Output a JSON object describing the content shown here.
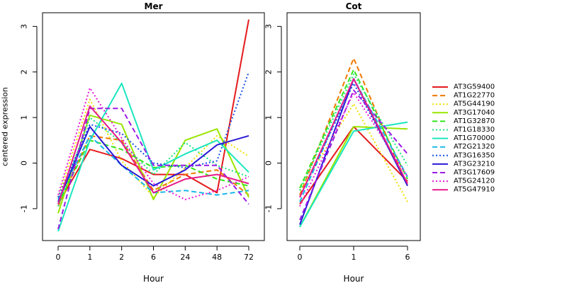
{
  "chart_data": [
    {
      "type": "line",
      "title": "Mer",
      "xlabel": "Hour",
      "ylabel": "centered expression",
      "categories": [
        "0",
        "1",
        "2",
        "6",
        "24",
        "48",
        "72"
      ],
      "yticks": [
        -1,
        0,
        1,
        2,
        3
      ],
      "ylim": [
        -1.7,
        3.3
      ],
      "series": [
        {
          "name": "AT3G59400",
          "values": [
            -0.9,
            0.3,
            0.1,
            -0.25,
            -0.25,
            -0.65,
            3.15
          ]
        },
        {
          "name": "AT1G22770",
          "values": [
            -0.95,
            0.6,
            0.5,
            -0.6,
            -0.25,
            -0.15,
            -0.7
          ]
        },
        {
          "name": "AT5G44190",
          "values": [
            -0.75,
            1.4,
            0.05,
            -0.75,
            -0.1,
            0.6,
            0.15
          ]
        },
        {
          "name": "AT3G17040",
          "values": [
            -1.1,
            1.05,
            0.85,
            -0.8,
            0.5,
            0.75,
            -0.75
          ]
        },
        {
          "name": "AT1G32870",
          "values": [
            -0.9,
            0.5,
            0.3,
            -0.1,
            -0.05,
            -0.35,
            -0.5
          ]
        },
        {
          "name": "AT1G18330",
          "values": [
            -0.95,
            1.0,
            0.45,
            -0.25,
            0.45,
            -0.05,
            -0.3
          ]
        },
        {
          "name": "AT1G70000",
          "values": [
            -1.5,
            0.5,
            1.75,
            -0.15,
            0.2,
            0.5,
            -0.2
          ]
        },
        {
          "name": "AT2G21320",
          "values": [
            -0.8,
            0.6,
            -0.05,
            -0.65,
            -0.6,
            -0.7,
            -0.6
          ]
        },
        {
          "name": "AT3G16350",
          "values": [
            -0.75,
            0.85,
            0.65,
            0.0,
            -0.1,
            0.05,
            2.0
          ]
        },
        {
          "name": "AT3G23210",
          "values": [
            -0.85,
            0.8,
            -0.05,
            -0.5,
            -0.15,
            0.4,
            0.6
          ]
        },
        {
          "name": "AT3G17609",
          "values": [
            -1.45,
            1.2,
            1.2,
            -0.05,
            -0.05,
            -0.05,
            -0.9
          ]
        },
        {
          "name": "AT5G24120",
          "values": [
            -0.7,
            1.65,
            0.55,
            -0.45,
            -0.8,
            -0.6,
            -0.3
          ]
        },
        {
          "name": "AT5G47910",
          "values": [
            -0.9,
            1.25,
            0.45,
            -0.65,
            -0.35,
            -0.25,
            -0.45
          ]
        }
      ]
    },
    {
      "type": "line",
      "title": "Cot",
      "xlabel": "Hour",
      "ylabel": "",
      "categories": [
        "0",
        "1",
        "6"
      ],
      "yticks": [
        -1,
        0,
        1,
        2,
        3
      ],
      "ylim": [
        -1.7,
        3.3
      ],
      "series": [
        {
          "name": "AT3G59400",
          "values": [
            -0.9,
            0.8,
            -0.4
          ]
        },
        {
          "name": "AT1G22770",
          "values": [
            -0.7,
            2.3,
            -0.5
          ]
        },
        {
          "name": "AT5G44190",
          "values": [
            -0.6,
            1.3,
            -0.85
          ]
        },
        {
          "name": "AT3G17040",
          "values": [
            -1.4,
            0.8,
            0.75
          ]
        },
        {
          "name": "AT1G32870",
          "values": [
            -0.55,
            2.05,
            -0.35
          ]
        },
        {
          "name": "AT1G18330",
          "values": [
            -0.6,
            1.95,
            -0.05
          ]
        },
        {
          "name": "AT1G70000",
          "values": [
            -1.4,
            0.7,
            0.9
          ]
        },
        {
          "name": "AT2G21320",
          "values": [
            -0.85,
            1.85,
            -0.3
          ]
        },
        {
          "name": "AT3G16350",
          "values": [
            -0.75,
            1.75,
            -0.45
          ]
        },
        {
          "name": "AT3G23210",
          "values": [
            -1.35,
            1.85,
            -0.5
          ]
        },
        {
          "name": "AT3G17609",
          "values": [
            -1.25,
            1.6,
            0.2
          ]
        },
        {
          "name": "AT5G24120",
          "values": [
            -0.95,
            1.55,
            -0.3
          ]
        },
        {
          "name": "AT5G47910",
          "values": [
            -0.75,
            1.85,
            -0.45
          ]
        }
      ]
    }
  ],
  "legend": {
    "placement": "right",
    "entries": [
      {
        "name": "AT3G59400",
        "color": "#e41a1c",
        "dash": "solid"
      },
      {
        "name": "AT1G22770",
        "color": "#f07800",
        "dash": "dashed"
      },
      {
        "name": "AT5G44190",
        "color": "#f0e000",
        "dash": "dotted"
      },
      {
        "name": "AT3G17040",
        "color": "#99e600",
        "dash": "solid"
      },
      {
        "name": "AT1G32870",
        "color": "#33e61a",
        "dash": "dashed"
      },
      {
        "name": "AT1G18330",
        "color": "#1ae680",
        "dash": "dotted"
      },
      {
        "name": "AT1G70000",
        "color": "#1ae6c0",
        "dash": "solid"
      },
      {
        "name": "AT2G21320",
        "color": "#18b8e8",
        "dash": "dashed"
      },
      {
        "name": "AT3G16350",
        "color": "#1a50e6",
        "dash": "dotted"
      },
      {
        "name": "AT3G23210",
        "color": "#2a1ad8",
        "dash": "solid"
      },
      {
        "name": "AT3G17609",
        "color": "#9a1ae6",
        "dash": "dashed"
      },
      {
        "name": "AT5G24120",
        "color": "#e61ad8",
        "dash": "dotted"
      },
      {
        "name": "AT5G47910",
        "color": "#e61a8a",
        "dash": "solid"
      }
    ]
  }
}
